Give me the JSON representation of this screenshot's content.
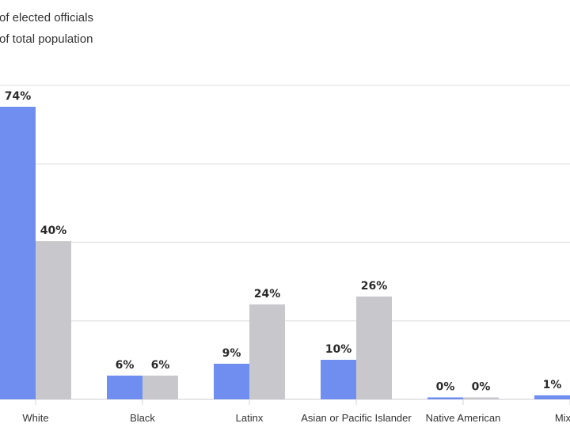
{
  "chart_data": {
    "type": "bar",
    "title": "",
    "xlabel": "",
    "ylabel": "",
    "ylim": [
      0,
      80
    ],
    "grid": true,
    "grid_step": 20,
    "legend_placement": "top-left",
    "categories": [
      "White",
      "Black",
      "Latinx",
      "Asian or Pacific Islander",
      "Native American",
      "Mixed,"
    ],
    "series": [
      {
        "name": "of elected officials",
        "color": "#6f8ef0",
        "values": [
          74,
          6,
          9,
          10,
          0,
          1
        ]
      },
      {
        "name": "of total population",
        "color": "#c8c7cb",
        "values": [
          40,
          6,
          24,
          26,
          0,
          null
        ]
      }
    ],
    "value_suffix": "%"
  }
}
